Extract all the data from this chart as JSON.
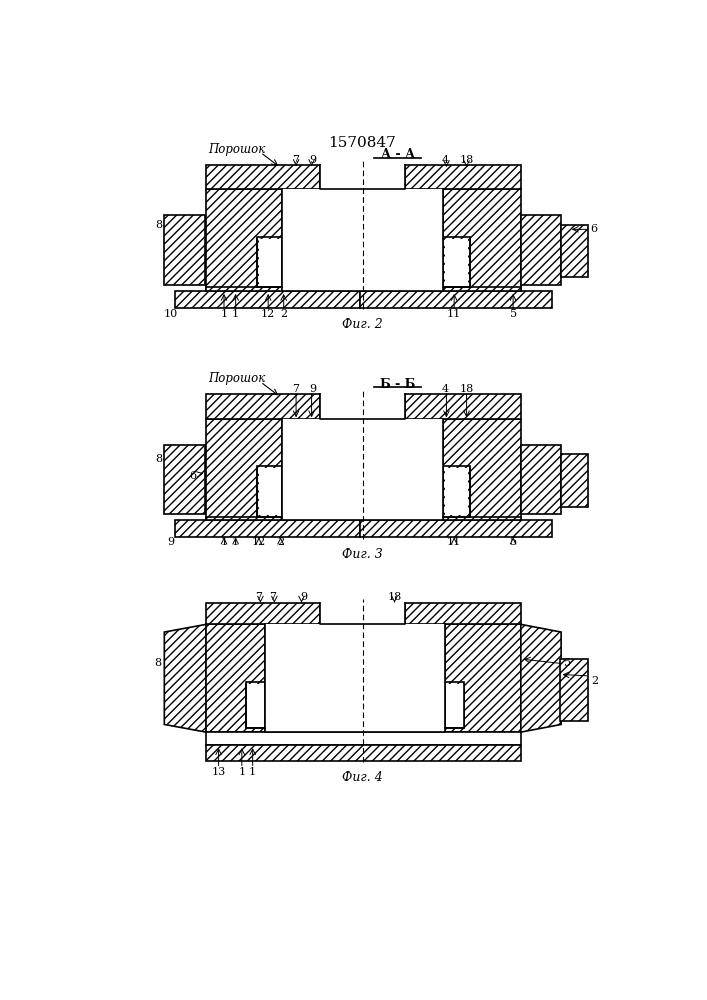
{
  "title": "1570847",
  "bg_color": "#ffffff",
  "fig2_caption": "Фиг. 2",
  "fig3_caption": "Фиг. 3",
  "fig4_caption": "Фиг. 4",
  "fig2_section": "А - А",
  "fig3_section": "Б - Б",
  "label_poroshok": "Порошок"
}
